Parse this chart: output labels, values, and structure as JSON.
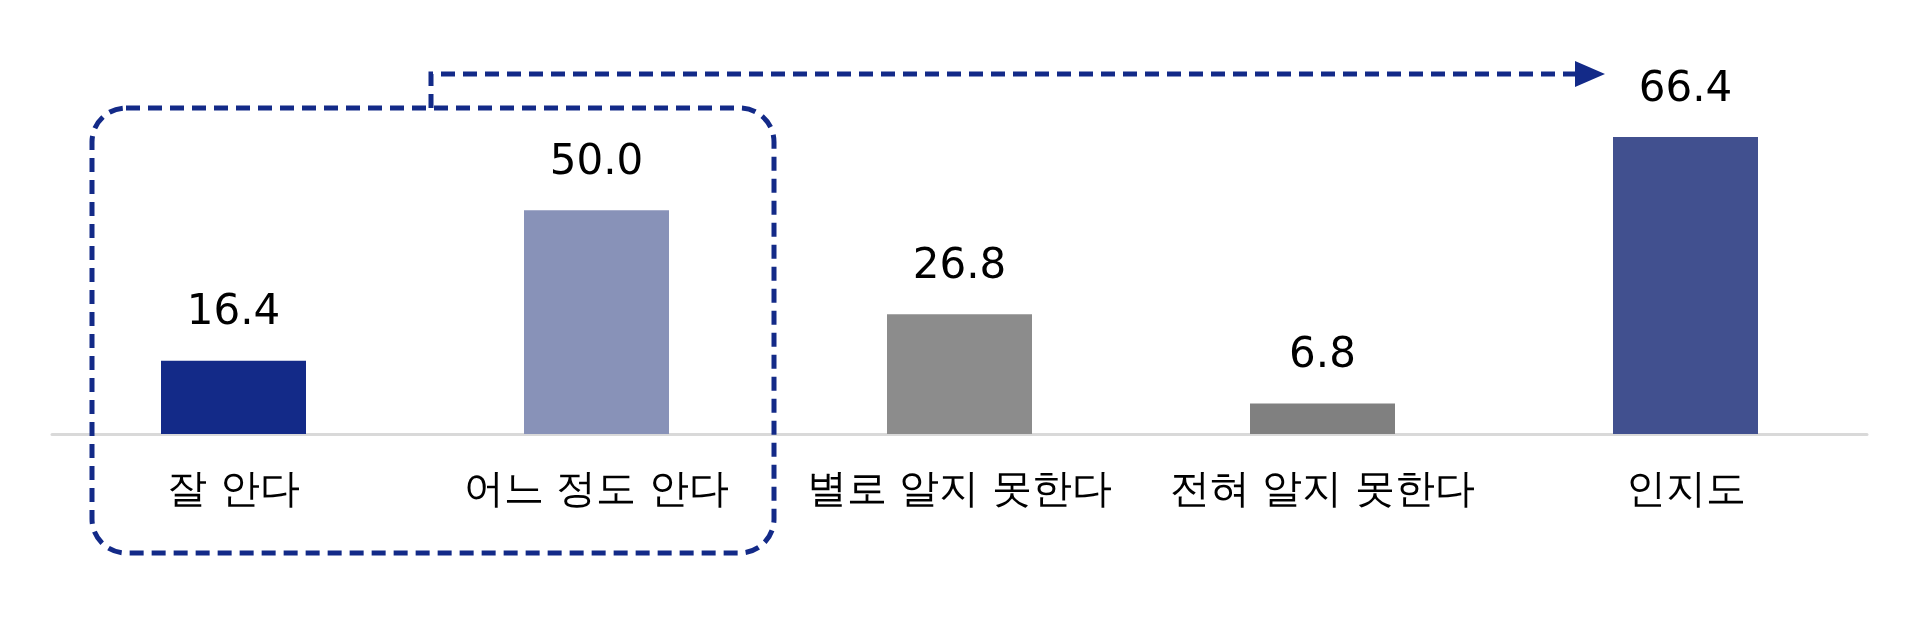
{
  "chart_data": {
    "type": "bar",
    "categories": [
      "잘 안다",
      "어느 정도 안다",
      "별로 알지 못한다",
      "전혀 알지 못한다",
      "인지도"
    ],
    "values": [
      16.4,
      50.0,
      26.8,
      6.8,
      66.4
    ],
    "value_labels": [
      "16.4",
      "50.0",
      "26.8",
      "6.8",
      "66.4"
    ],
    "colors": [
      "#132a88",
      "#8892b8",
      "#8c8c8c",
      "#808080",
      "#41508f"
    ]
  }
}
